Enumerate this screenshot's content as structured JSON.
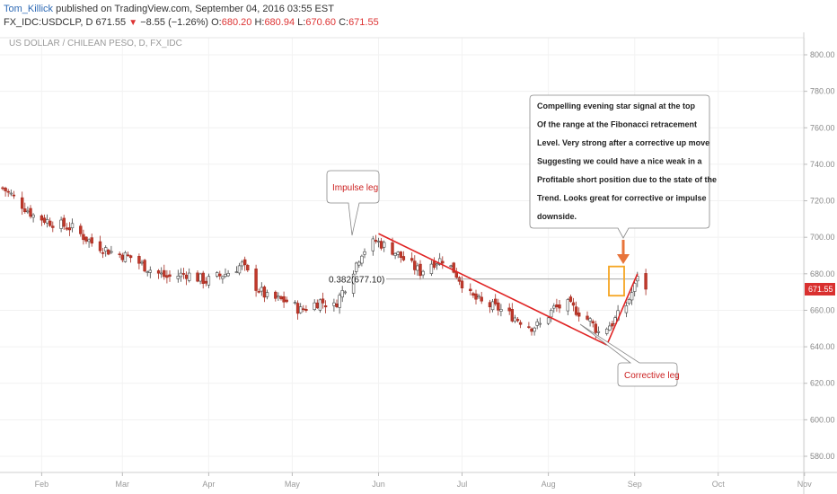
{
  "header": {
    "author": "Tom_Killick",
    "published_text": "published on TradingView.com, September 04, 2016 03:55 EST",
    "symbol": "FX_IDC:USDCLP, D",
    "last": "671.55",
    "change": "−8.55 (−1.26%)",
    "o_label": "O:",
    "o_val": "680.20",
    "h_label": "H:",
    "h_val": "680.94",
    "l_label": "L:",
    "l_val": "670.60",
    "c_label": "C:",
    "c_val": "671.55"
  },
  "pane_title": "US DOLLAR / CHILEAN PESO, D, FX_IDC",
  "price_badge": "671.55",
  "annotations": {
    "impulse": "Impulse leg",
    "corrective": "Corrective leg",
    "fib": "0.382(677.10)",
    "signal_lines": [
      "Compelling evening star signal at the top",
      "Of the range at the Fibonacci retracement",
      "Level. Very strong after a corrective up move",
      "Suggesting we could have a nice weak in a",
      "Profitable short position due to the state of the",
      "Trend. Looks great for corrective or impulse",
      "downside."
    ]
  },
  "colors": {
    "up": "#ffffff",
    "down": "#c0392b",
    "trend": "#e02424",
    "highlight": "#f5a623",
    "badge": "#d9302f"
  },
  "chart_data": {
    "type": "candlestick",
    "title": "US DOLLAR / CHILEAN PESO, D, FX_IDC",
    "y_ticks": [
      580,
      600,
      620,
      640,
      660,
      680,
      700,
      720,
      740,
      760,
      780,
      800
    ],
    "ylim": [
      570,
      808
    ],
    "x_months": [
      "Feb",
      "Mar",
      "Apr",
      "May",
      "Jun",
      "Jul",
      "Aug",
      "Sep",
      "Oct",
      "Nov"
    ],
    "x_start": "2016-01-18",
    "last_close": 671.55,
    "fib_level": 677.1,
    "close_path": [
      [
        "2016-01-18",
        727
      ],
      [
        "2016-01-22",
        722
      ],
      [
        "2016-01-29",
        712
      ],
      [
        "2016-02-05",
        708
      ],
      [
        "2016-02-12",
        705
      ],
      [
        "2016-02-19",
        697
      ],
      [
        "2016-02-26",
        692
      ],
      [
        "2016-03-04",
        689
      ],
      [
        "2016-03-10",
        683
      ],
      [
        "2016-03-17",
        678
      ],
      [
        "2016-03-24",
        680
      ],
      [
        "2016-03-31",
        676
      ],
      [
        "2016-04-07",
        680
      ],
      [
        "2016-04-13",
        685
      ],
      [
        "2016-04-18",
        673
      ],
      [
        "2016-04-22",
        667
      ],
      [
        "2016-04-29",
        665
      ],
      [
        "2016-05-04",
        660
      ],
      [
        "2016-05-11",
        665
      ],
      [
        "2016-05-16",
        662
      ],
      [
        "2016-05-20",
        673
      ],
      [
        "2016-05-26",
        692
      ],
      [
        "2016-05-31",
        698
      ],
      [
        "2016-06-06",
        693
      ],
      [
        "2016-06-10",
        688
      ],
      [
        "2016-06-16",
        681
      ],
      [
        "2016-06-20",
        686
      ],
      [
        "2016-06-24",
        688
      ],
      [
        "2016-06-28",
        682
      ],
      [
        "2016-07-04",
        668
      ],
      [
        "2016-07-08",
        664
      ],
      [
        "2016-07-14",
        661
      ],
      [
        "2016-07-20",
        656
      ],
      [
        "2016-07-26",
        651
      ],
      [
        "2016-07-29",
        652
      ],
      [
        "2016-08-03",
        661
      ],
      [
        "2016-08-08",
        663
      ],
      [
        "2016-08-12",
        659
      ],
      [
        "2016-08-16",
        654
      ],
      [
        "2016-08-19",
        648
      ],
      [
        "2016-08-24",
        653
      ],
      [
        "2016-08-29",
        663
      ],
      [
        "2016-09-01",
        673
      ],
      [
        "2016-09-02",
        680
      ],
      [
        "2016-09-05",
        671.55
      ]
    ],
    "trend_lines": [
      {
        "name": "Impulse leg",
        "from": [
          "2016-06-01",
          702
        ],
        "to": [
          "2016-08-22",
          641
        ]
      },
      {
        "name": "Corrective leg",
        "from": [
          "2016-08-22",
          641
        ],
        "to": [
          "2016-09-02",
          680
        ]
      }
    ]
  }
}
